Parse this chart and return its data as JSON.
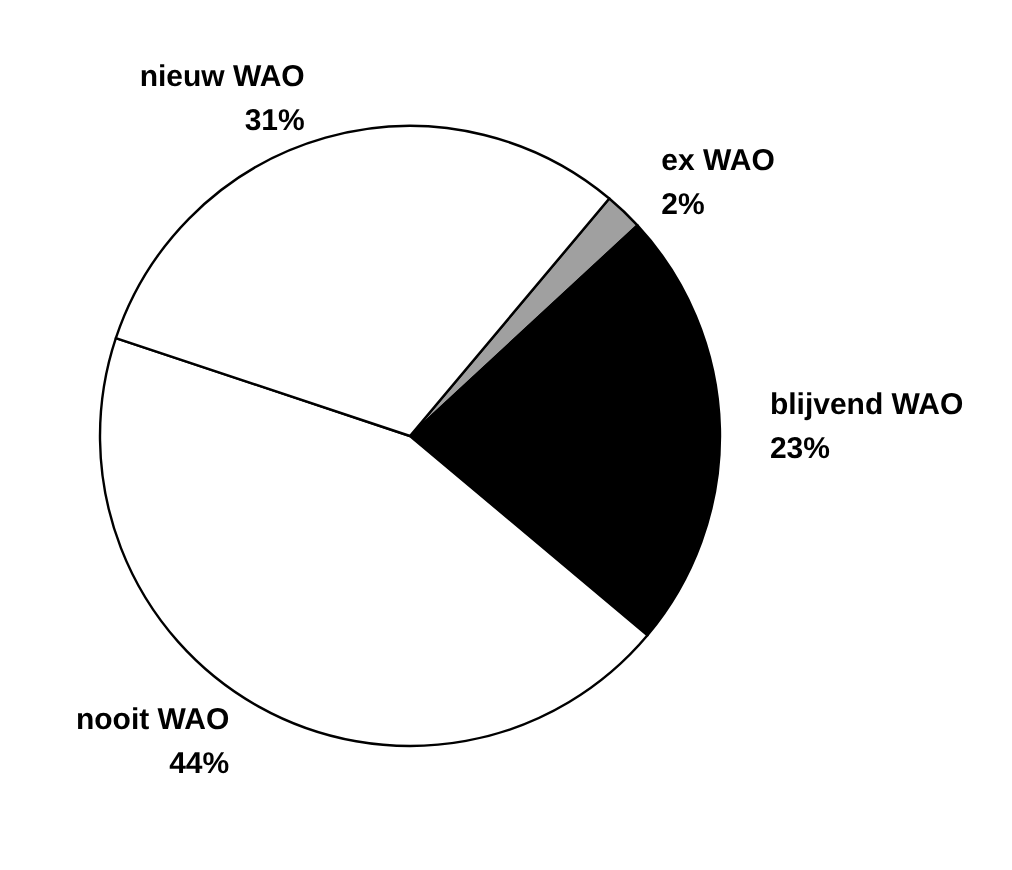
{
  "chart_data": {
    "type": "pie",
    "categories": [
      "ex WAO",
      "blijvend WAO",
      "nooit WAO",
      "nieuw WAO"
    ],
    "values": [
      2,
      23,
      44,
      31
    ],
    "value_labels": [
      "2%",
      "23%",
      "44%",
      "31%"
    ],
    "colors": [
      "#a0a0a0",
      "#000000",
      "#ffffff",
      "#ffffff"
    ]
  }
}
